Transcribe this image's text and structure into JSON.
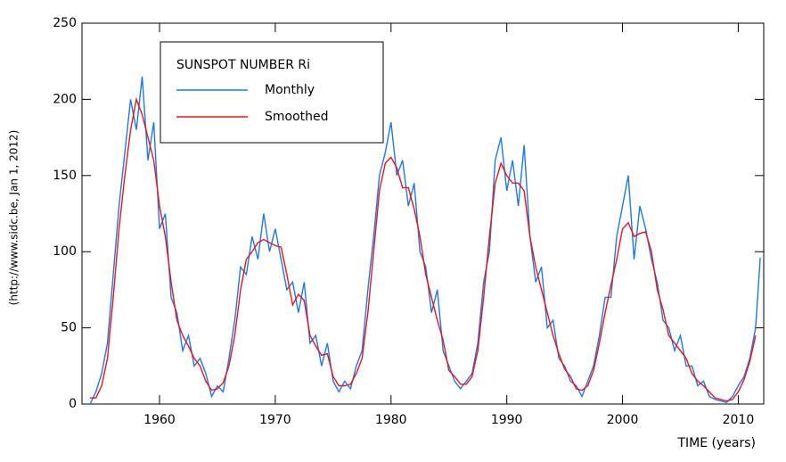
{
  "chart_data": {
    "type": "line",
    "ylabel": "(http://www.sidc.be, Jan  1, 2012)",
    "xlabel": "TIME (years)",
    "legend_title": "SUNSPOT NUMBER Ri",
    "xlim": [
      1953.3,
      2012.2
    ],
    "ylim": [
      0,
      250
    ],
    "xticks": [
      1960,
      1970,
      1980,
      1990,
      2000,
      2010
    ],
    "yticks": [
      0,
      50,
      100,
      150,
      200,
      250
    ],
    "x": [
      1954.0,
      1954.5,
      1955.0,
      1955.5,
      1956.0,
      1956.5,
      1957.0,
      1957.5,
      1958.0,
      1958.5,
      1959.0,
      1959.5,
      1960.0,
      1960.5,
      1961.0,
      1961.5,
      1962.0,
      1962.5,
      1963.0,
      1963.5,
      1964.0,
      1964.5,
      1965.0,
      1965.5,
      1966.0,
      1966.5,
      1967.0,
      1967.5,
      1968.0,
      1968.5,
      1969.0,
      1969.5,
      1970.0,
      1970.5,
      1971.0,
      1971.5,
      1972.0,
      1972.5,
      1973.0,
      1973.5,
      1974.0,
      1974.5,
      1975.0,
      1975.5,
      1976.0,
      1976.5,
      1977.0,
      1977.5,
      1978.0,
      1978.5,
      1979.0,
      1979.5,
      1980.0,
      1980.5,
      1981.0,
      1981.5,
      1982.0,
      1982.5,
      1983.0,
      1983.5,
      1984.0,
      1984.5,
      1985.0,
      1985.5,
      1986.0,
      1986.5,
      1987.0,
      1987.5,
      1988.0,
      1988.5,
      1989.0,
      1989.5,
      1990.0,
      1990.5,
      1991.0,
      1991.5,
      1992.0,
      1992.5,
      1993.0,
      1993.5,
      1994.0,
      1994.5,
      1995.0,
      1995.5,
      1996.0,
      1996.5,
      1997.0,
      1997.5,
      1998.0,
      1998.5,
      1999.0,
      1999.5,
      2000.0,
      2000.5,
      2001.0,
      2001.5,
      2002.0,
      2002.5,
      2003.0,
      2003.5,
      2004.0,
      2004.5,
      2005.0,
      2005.5,
      2006.0,
      2006.5,
      2007.0,
      2007.5,
      2008.0,
      2008.5,
      2009.0,
      2009.5,
      2010.0,
      2010.5,
      2011.0,
      2011.5,
      2011.9
    ],
    "series": [
      {
        "name": "Monthly",
        "color": "#1f78e6",
        "values": [
          0,
          8,
          20,
          40,
          85,
          130,
          165,
          200,
          180,
          215,
          160,
          185,
          115,
          125,
          70,
          60,
          35,
          45,
          25,
          30,
          20,
          5,
          12,
          8,
          30,
          55,
          90,
          85,
          110,
          95,
          125,
          100,
          115,
          95,
          75,
          80,
          60,
          80,
          40,
          45,
          25,
          40,
          15,
          8,
          15,
          10,
          25,
          35,
          75,
          110,
          150,
          165,
          185,
          150,
          160,
          130,
          145,
          100,
          90,
          60,
          75,
          35,
          25,
          15,
          10,
          15,
          20,
          40,
          80,
          100,
          160,
          175,
          140,
          160,
          130,
          170,
          110,
          80,
          90,
          50,
          55,
          30,
          25,
          15,
          12,
          5,
          15,
          25,
          45,
          70,
          70,
          110,
          130,
          150,
          95,
          130,
          115,
          95,
          80,
          55,
          50,
          35,
          45,
          25,
          25,
          12,
          15,
          5,
          3,
          2,
          1,
          5,
          12,
          18,
          30,
          50,
          96
        ]
      },
      {
        "name": "Smoothed",
        "color": "#e8141e",
        "values": [
          4,
          4,
          12,
          30,
          70,
          115,
          150,
          180,
          200,
          190,
          175,
          160,
          130,
          110,
          80,
          55,
          45,
          38,
          30,
          25,
          15,
          9,
          10,
          14,
          25,
          45,
          75,
          95,
          100,
          106,
          108,
          106,
          104,
          103,
          85,
          65,
          72,
          68,
          45,
          38,
          32,
          33,
          18,
          12,
          12,
          13,
          20,
          30,
          60,
          100,
          140,
          158,
          162,
          155,
          142,
          142,
          128,
          110,
          85,
          70,
          55,
          42,
          22,
          18,
          13,
          13,
          18,
          35,
          70,
          110,
          145,
          158,
          150,
          145,
          145,
          140,
          110,
          90,
          75,
          60,
          45,
          33,
          23,
          18,
          10,
          9,
          12,
          22,
          40,
          60,
          78,
          95,
          115,
          119,
          110,
          112,
          113,
          100,
          75,
          62,
          45,
          40,
          35,
          30,
          20,
          15,
          12,
          8,
          4,
          3,
          2,
          3,
          8,
          16,
          28,
          45,
          null
        ]
      }
    ]
  }
}
